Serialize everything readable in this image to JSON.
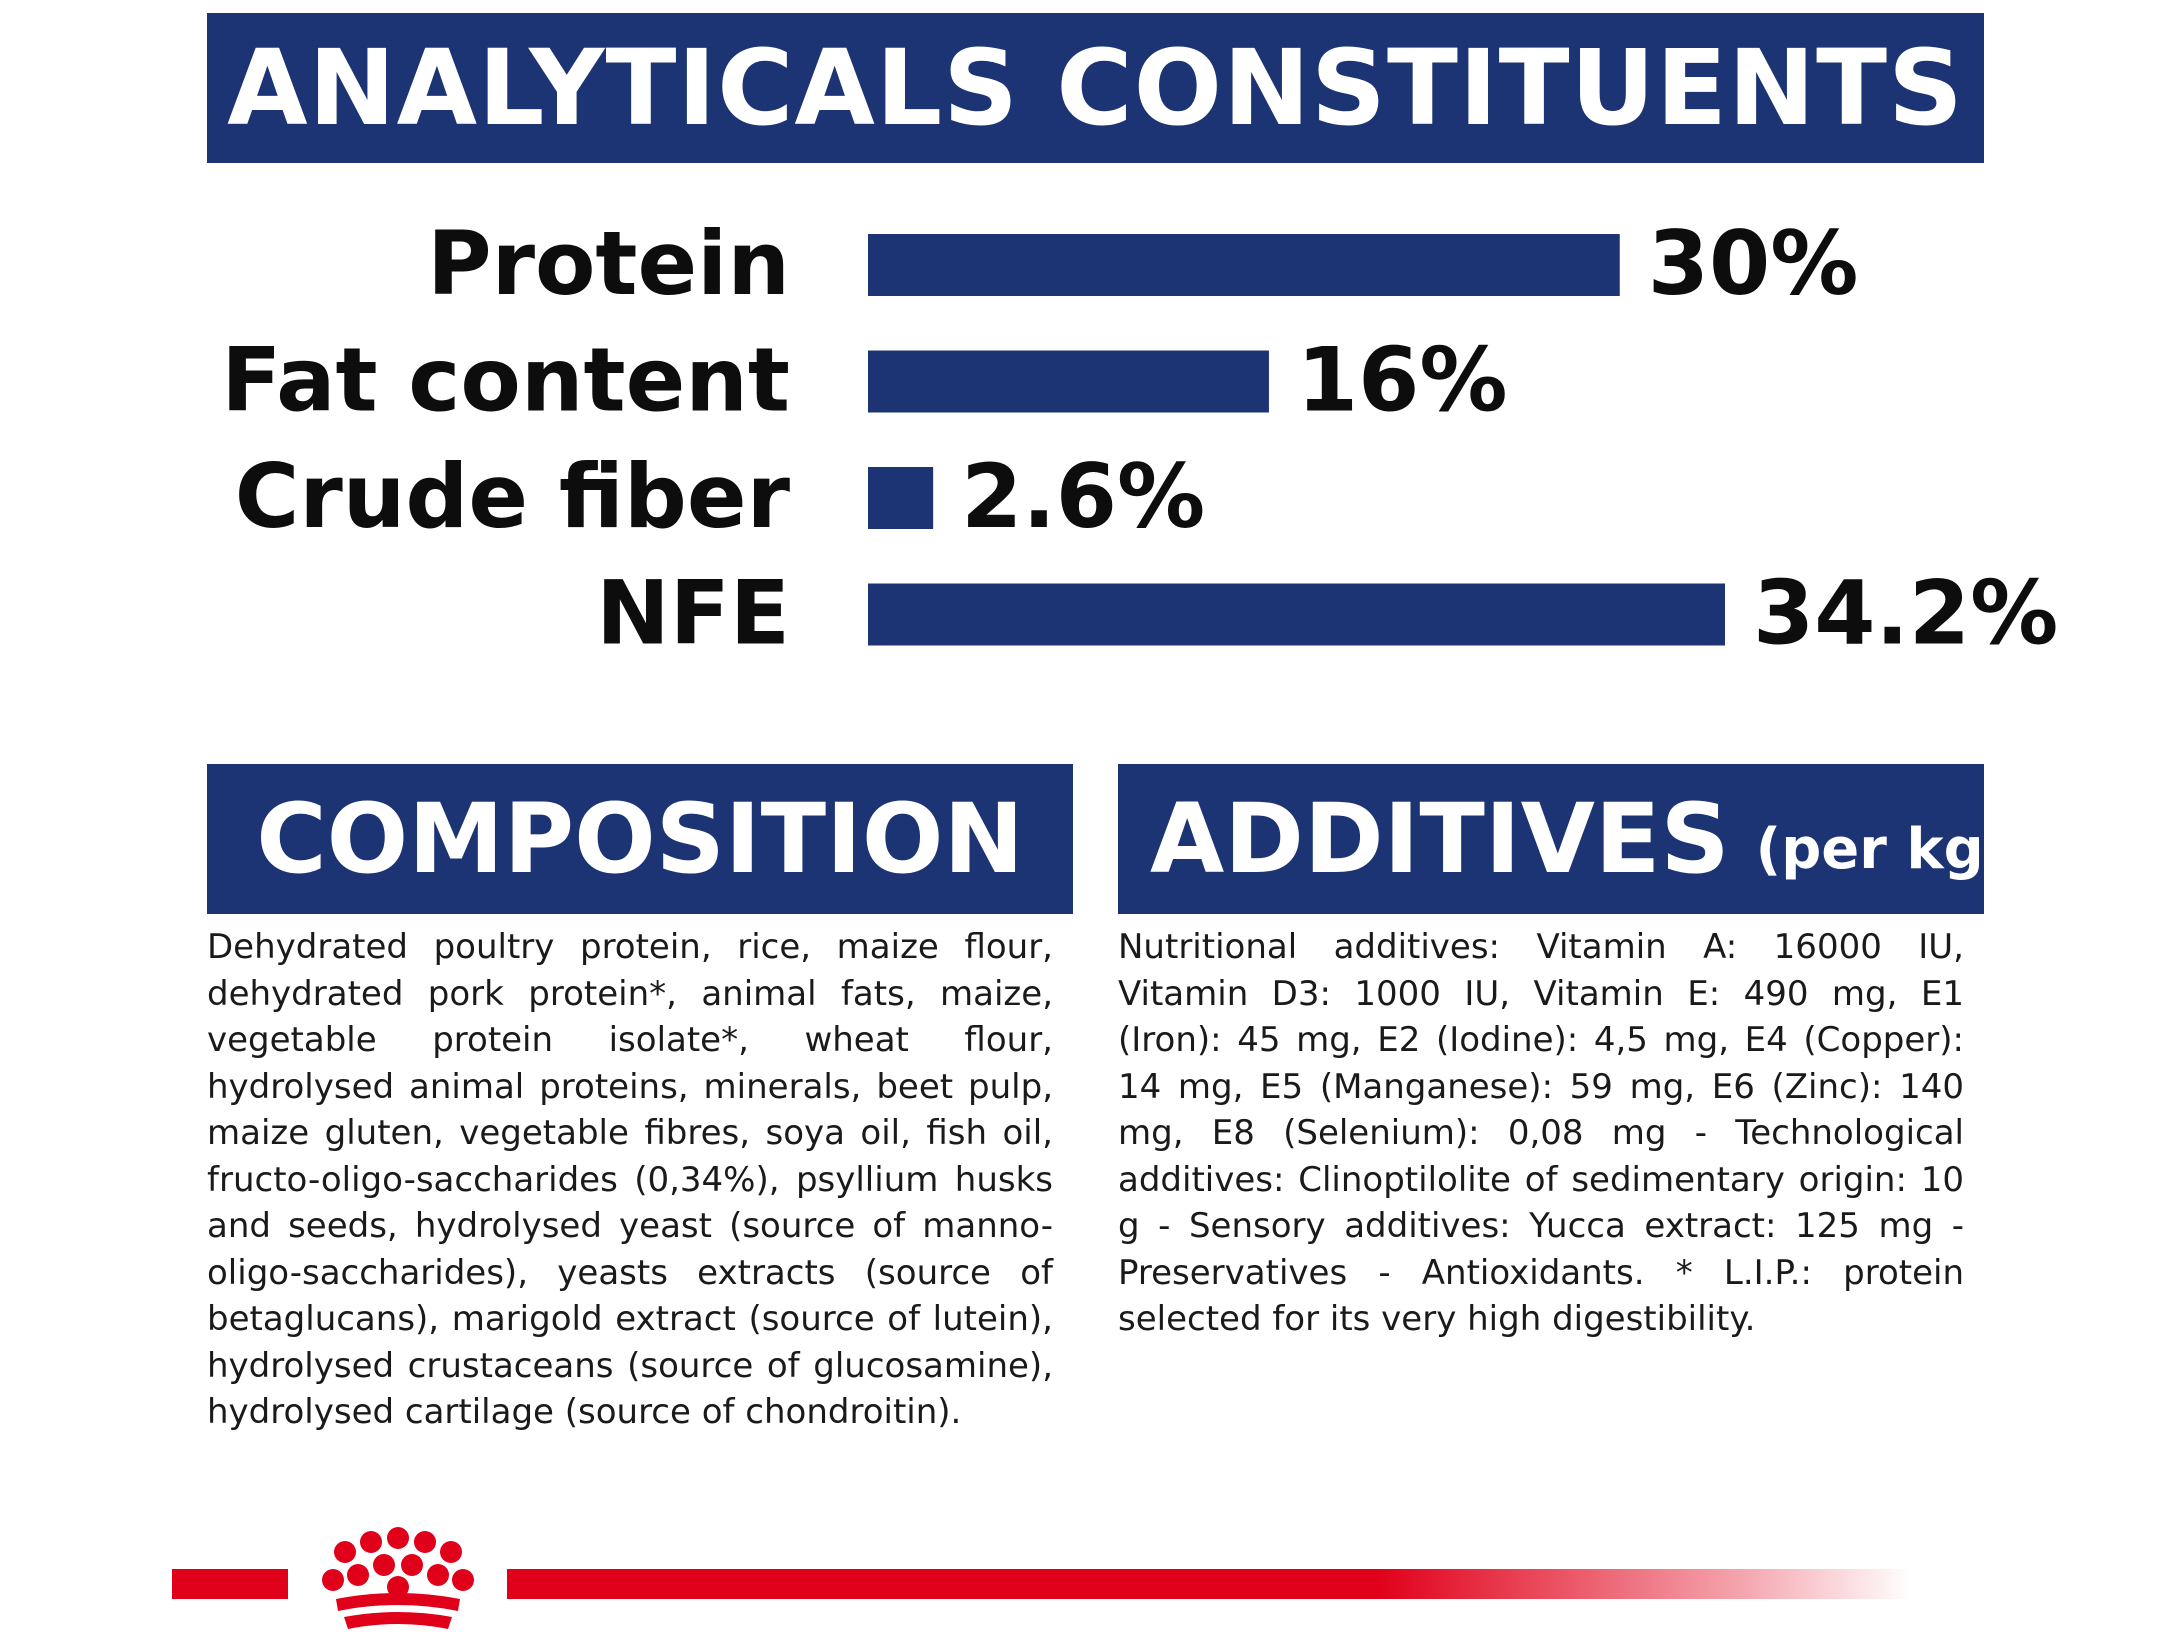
{
  "banners": {
    "analytical": "ANALYTICALS CONSTITUENTS",
    "composition": "COMPOSITION",
    "additives": "ADDITIVES",
    "additives_sub": "(per kg)"
  },
  "chart_data": {
    "type": "bar",
    "orientation": "horizontal",
    "categories": [
      "Protein",
      "Fat content",
      "Crude fiber",
      "NFE"
    ],
    "values": [
      30,
      16,
      2.6,
      34.2
    ],
    "value_labels": [
      "30%",
      "16%",
      "2.6%",
      "34.2%"
    ],
    "unit": "%",
    "color": "#1c3374",
    "xlim": [
      0,
      34.2
    ],
    "grid": false,
    "legend": "none"
  },
  "composition": {
    "text": "Dehydrated poultry protein, rice, maize flour, dehydrated pork protein*, animal fats, maize, vegetable protein isolate*, wheat flour, hydrolysed animal proteins, minerals, beet pulp, maize gluten, vegetable fibres, soya oil, fish oil, fructo-oligo-saccharides (0,34%), psyllium husks and seeds, hydrolysed yeast (source of manno-oligo-saccharides), yeasts extracts (source of betaglucans), marigold extract (source of lutein), hydrolysed crustaceans (source of glucosamine), hydrolysed cartilage (source of chondroitin)."
  },
  "additives": {
    "text": "Nutritional additives: Vitamin A: 16000 IU, Vitamin D3: 1000 IU, Vitamin E: 490 mg, E1 (Iron): 45 mg, E2 (Iodine): 4,5 mg, E4 (Copper): 14 mg, E5 (Manganese): 59 mg, E6 (Zinc): 140 mg, E8 (Selenium): 0,08 mg - Technological additives: Clinoptilolite of sedimentary origin: 10 g - Sensory additives: Yucca extract: 125 mg - Preservatives - Antioxidants. * L.I.P.: protein selected for its very high digestibility."
  },
  "footer": {
    "brand_color": "#e1001a",
    "icon": "crown-logo-icon"
  }
}
